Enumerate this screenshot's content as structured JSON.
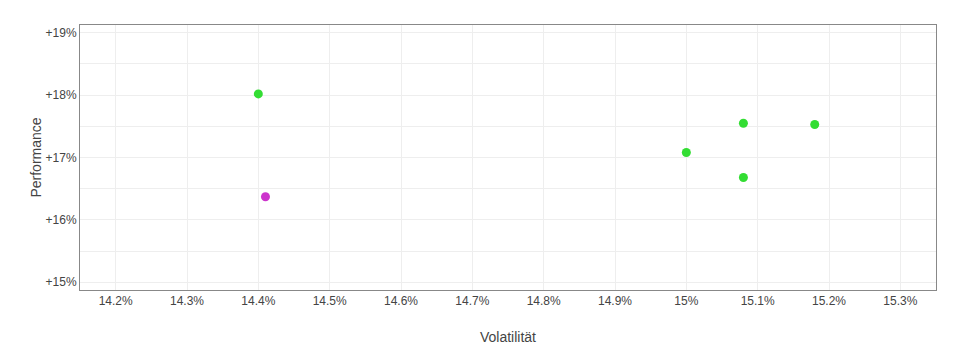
{
  "chart_data": {
    "type": "scatter",
    "xlabel": "Volatilität",
    "ylabel": "Performance",
    "x": [
      14.4,
      14.41,
      15.0,
      15.08,
      15.08,
      15.18
    ],
    "values": [
      18.02,
      16.37,
      17.08,
      16.68,
      17.55,
      17.53
    ],
    "colors": [
      "#33dd33",
      "#cc33cc",
      "#33dd33",
      "#33dd33",
      "#33dd33",
      "#33dd33"
    ],
    "xlim": [
      14.15,
      15.35
    ],
    "ylim": [
      14.875,
      19.125
    ],
    "xticks": [
      {
        "value": 14.2,
        "label": "14.2%"
      },
      {
        "value": 14.3,
        "label": "14.3%"
      },
      {
        "value": 14.4,
        "label": "14.4%"
      },
      {
        "value": 14.5,
        "label": "14.5%"
      },
      {
        "value": 14.6,
        "label": "14.6%"
      },
      {
        "value": 14.7,
        "label": "14.7%"
      },
      {
        "value": 14.8,
        "label": "14.8%"
      },
      {
        "value": 14.9,
        "label": "14.9%"
      },
      {
        "value": 15.0,
        "label": "15%"
      },
      {
        "value": 15.1,
        "label": "15.1%"
      },
      {
        "value": 15.2,
        "label": "15.2%"
      },
      {
        "value": 15.3,
        "label": "15.3%"
      }
    ],
    "yticks": [
      {
        "value": 15.0,
        "label": "+15%"
      },
      {
        "value": 15.5,
        "label": null
      },
      {
        "value": 16.0,
        "label": "+16%"
      },
      {
        "value": 16.5,
        "label": null
      },
      {
        "value": 17.0,
        "label": "+17%"
      },
      {
        "value": 17.5,
        "label": null
      },
      {
        "value": 18.0,
        "label": "+18%"
      },
      {
        "value": 18.5,
        "label": null
      },
      {
        "value": 19.0,
        "label": "+19%"
      }
    ],
    "grid": true
  }
}
